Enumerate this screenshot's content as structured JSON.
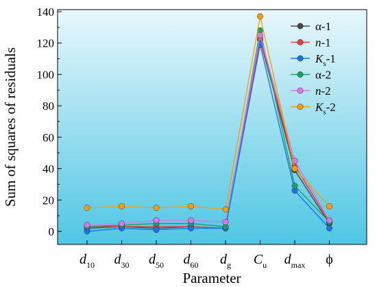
{
  "chart_data": {
    "type": "line",
    "xlabel": "Parameter",
    "ylabel": "Sum of squares of residuals",
    "ylim": [
      0,
      140
    ],
    "y_ticks": [
      0,
      20,
      40,
      60,
      80,
      100,
      120,
      140
    ],
    "grid": false,
    "legend_position": "top-right",
    "background": {
      "top": "#e8f7fb",
      "bottom": "#4fc6e4"
    },
    "categories": [
      {
        "base": "d",
        "sub": "10",
        "italic": true
      },
      {
        "base": "d",
        "sub": "30",
        "italic": true
      },
      {
        "base": "d",
        "sub": "50",
        "italic": true
      },
      {
        "base": "d",
        "sub": "60",
        "italic": true
      },
      {
        "base": "d",
        "sub": "g",
        "italic": true
      },
      {
        "base": "C",
        "sub": "u",
        "italic": true
      },
      {
        "base": "d",
        "sub": "max",
        "italic": true
      },
      {
        "base": "ϕ",
        "sub": "",
        "italic": false
      }
    ],
    "series": [
      {
        "name": {
          "base": "α",
          "sub": "",
          "suffix": "-1",
          "italic": false
        },
        "color": "#4a4a4a",
        "values": [
          2,
          3,
          2,
          3,
          2,
          122,
          39,
          5
        ]
      },
      {
        "name": {
          "base": "n",
          "sub": "",
          "suffix": "-1",
          "italic": true
        },
        "color": "#ee3b3b",
        "values": [
          3,
          3,
          3,
          3,
          2,
          123,
          42,
          6
        ]
      },
      {
        "name": {
          "base": "K",
          "sub": "s",
          "suffix": "-1",
          "italic": true
        },
        "color": "#1874e8",
        "values": [
          0,
          2,
          1,
          2,
          2,
          119,
          26,
          2
        ]
      },
      {
        "name": {
          "base": "α",
          "sub": "",
          "suffix": "-2",
          "italic": false
        },
        "color": "#1aa06d",
        "values": [
          3,
          4,
          5,
          5,
          3,
          128,
          29,
          6
        ]
      },
      {
        "name": {
          "base": "n",
          "sub": "",
          "suffix": "-2",
          "italic": true
        },
        "color": "#d57ae6",
        "values": [
          4,
          5,
          7,
          7,
          6,
          125,
          45,
          7
        ]
      },
      {
        "name": {
          "base": "K",
          "sub": "s",
          "suffix": "-2",
          "italic": true
        },
        "color": "#f2a010",
        "values": [
          15,
          16,
          15,
          16,
          14,
          137,
          40,
          16
        ]
      }
    ]
  }
}
